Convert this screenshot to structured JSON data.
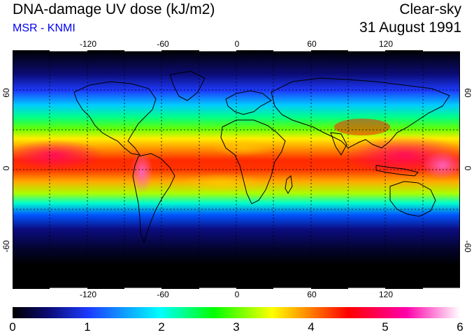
{
  "header": {
    "title": "DNA-damage UV dose (kJ/m2)",
    "subtitle": "MSR - KNMI",
    "condition": "Clear-sky",
    "date": "31 August 1991"
  },
  "map": {
    "lon_ticks": [
      "-120",
      "-60",
      "0",
      "60",
      "120"
    ],
    "lat_ticks": [
      "60",
      "0",
      "-60"
    ]
  },
  "colorbar": {
    "ticks": [
      "0",
      "1",
      "2",
      "3",
      "4",
      "5",
      "6"
    ],
    "colors": [
      "#000000",
      "#0b0b74",
      "#1d3bff",
      "#00ffff",
      "#00ff00",
      "#ffff00",
      "#ff8800",
      "#ff0000",
      "#ff00aa",
      "#ffffff"
    ]
  }
}
